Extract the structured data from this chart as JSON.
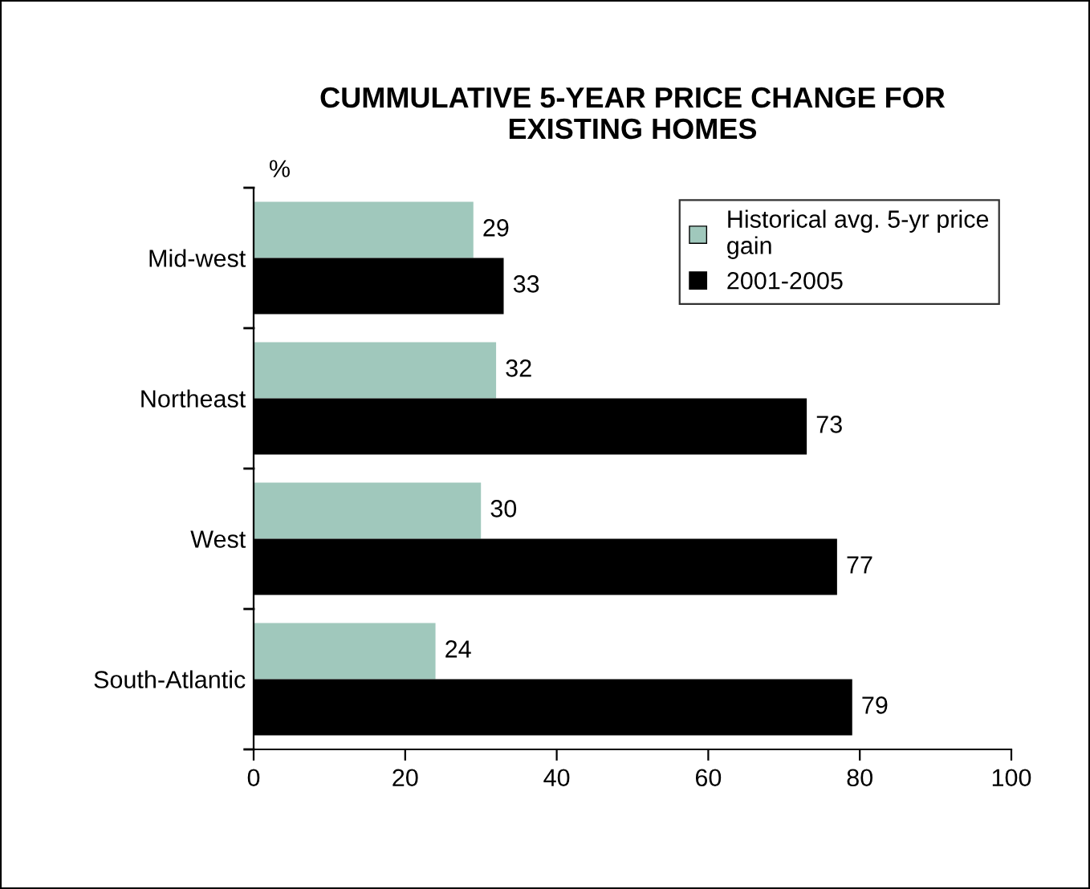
{
  "chart_data": {
    "type": "bar",
    "orientation": "horizontal",
    "title": "CUMMULATIVE 5-YEAR PRICE CHANGE FOR\nEXISTING HOMES",
    "xlabel": "%",
    "categories": [
      "Mid-west",
      "Northeast",
      "West",
      "South-Atlantic"
    ],
    "series": [
      {
        "name": "Historical avg. 5-yr price\ngain",
        "color": "#a0c8bc",
        "values": [
          29,
          32,
          30,
          24
        ]
      },
      {
        "name": "2001-2005",
        "color": "#000000",
        "values": [
          33,
          73,
          77,
          79
        ]
      }
    ],
    "xlim": [
      0,
      100
    ],
    "xticks": [
      0,
      20,
      40,
      60,
      80,
      100
    ],
    "data_labels": true,
    "grid": false,
    "legend": "top right"
  }
}
